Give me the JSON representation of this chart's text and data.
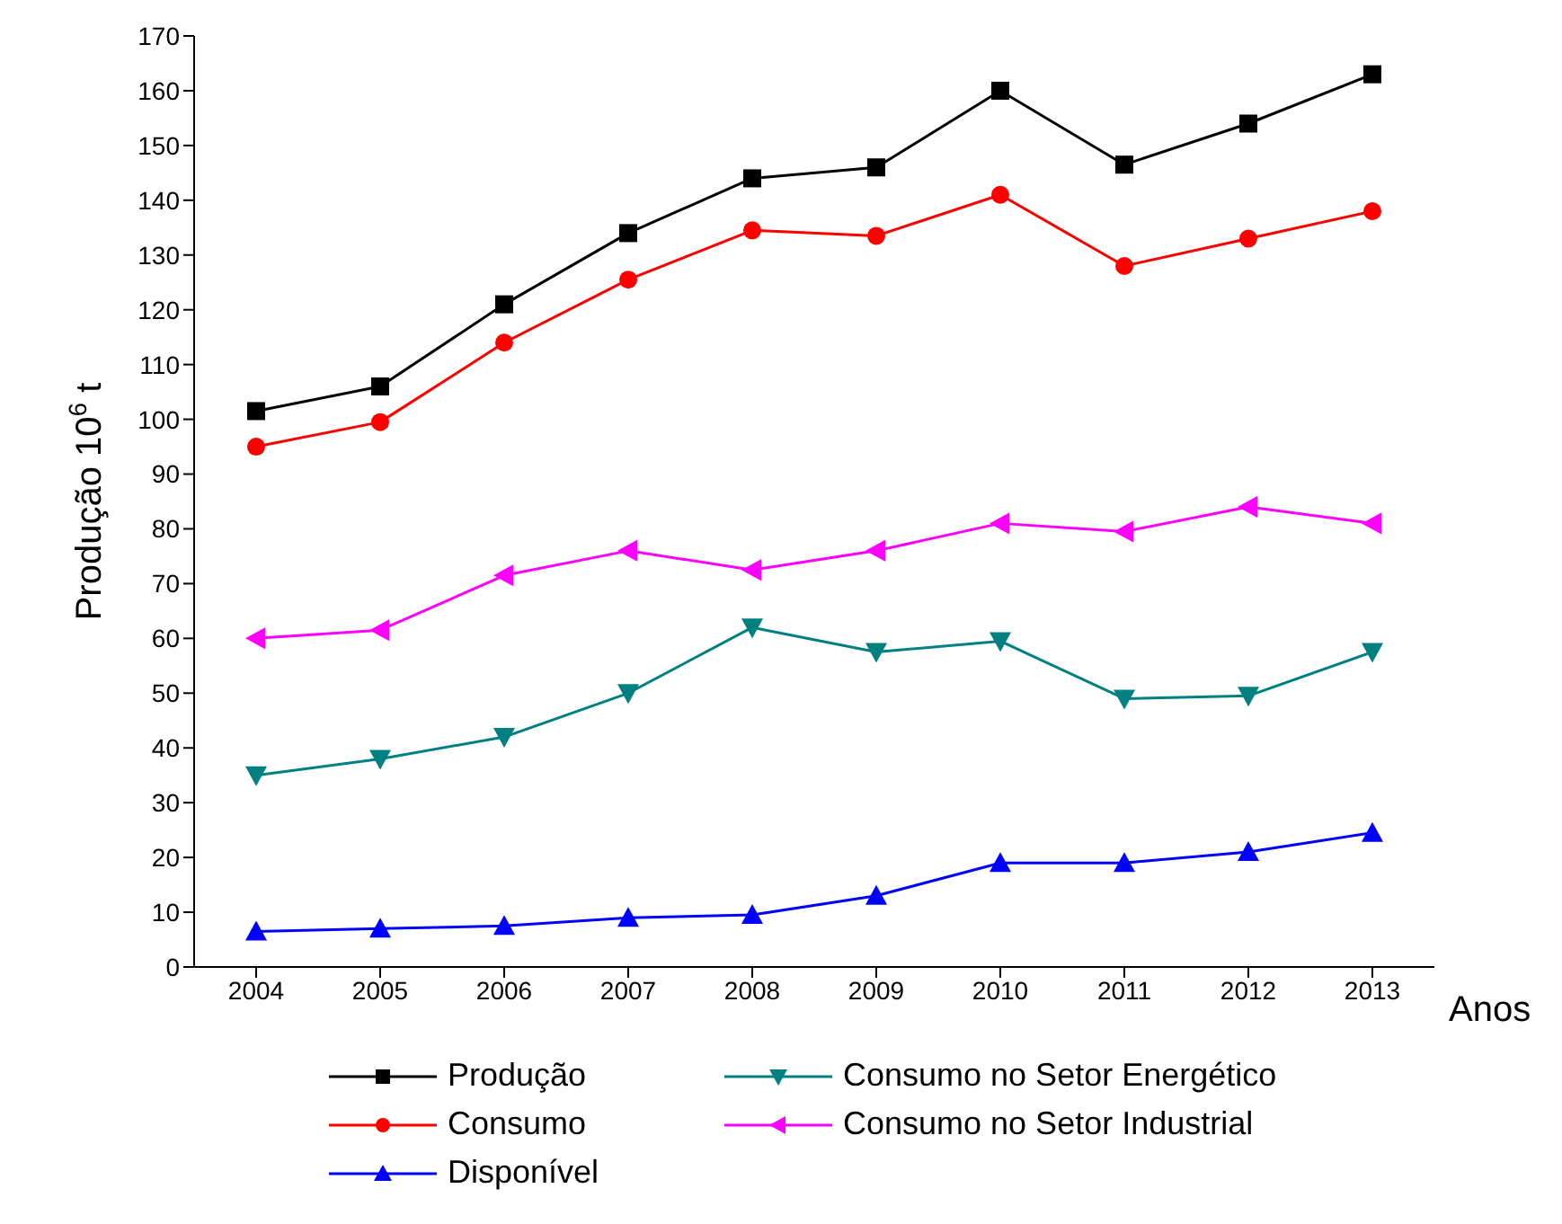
{
  "chart_data": {
    "type": "line",
    "xlabel": "Anos",
    "ylabel": "Produção  10$^{6}$ t",
    "categories": [
      "2004",
      "2005",
      "2006",
      "2007",
      "2008",
      "2009",
      "2010",
      "2011",
      "2012",
      "2013"
    ],
    "series": [
      {
        "name": "Produção",
        "color": "#000000",
        "marker": "square",
        "values": [
          101.5,
          106,
          121,
          134,
          144,
          146,
          160,
          146.5,
          154,
          163
        ]
      },
      {
        "name": "Consumo",
        "color": "#ff0000",
        "marker": "circle",
        "values": [
          95,
          99.5,
          114,
          125.5,
          134.5,
          133.5,
          141,
          128,
          133,
          138
        ]
      },
      {
        "name": "Disponível",
        "color": "#0000ff",
        "marker": "triangle",
        "values": [
          6.5,
          7,
          7.5,
          9,
          9.5,
          13,
          19,
          19,
          21,
          24.5
        ]
      },
      {
        "name": "Consumo no Setor Energético",
        "color": "#008080",
        "marker": "triangle-down",
        "values": [
          35,
          38,
          42,
          50,
          62,
          57.5,
          59.5,
          49,
          49.5,
          57.5
        ]
      },
      {
        "name": "Consumo no Setor Industrial",
        "color": "#ff00ff",
        "marker": "triangle-left",
        "values": [
          60,
          61.5,
          71.5,
          76,
          72.5,
          76,
          81,
          79.5,
          84,
          81
        ]
      }
    ],
    "ylim": [
      0,
      170
    ],
    "yticks": [
      0,
      10,
      20,
      30,
      40,
      50,
      60,
      70,
      80,
      90,
      100,
      110,
      120,
      130,
      140,
      150,
      160,
      170
    ],
    "grid": false,
    "legend": "bottom",
    "line_style": "solid"
  }
}
